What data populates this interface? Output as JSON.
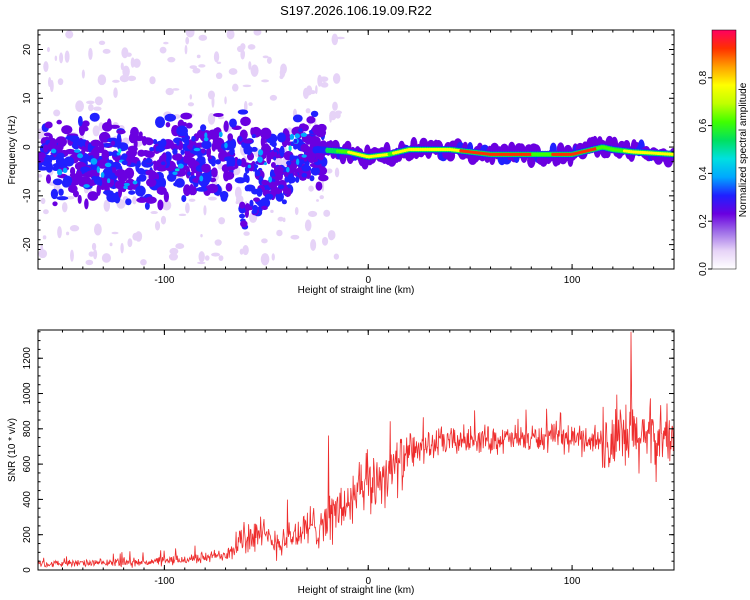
{
  "title": "S197.2026.106.19.09.R22",
  "chart_data": [
    {
      "type": "heatmap",
      "title": "S197.2026.106.19.09.R22",
      "xlabel": "Height of straight line (km)",
      "ylabel": "Frequency (Hz)",
      "xlim": [
        -162,
        150
      ],
      "ylim": [
        -25,
        24
      ],
      "x_ticks": [
        -100,
        0,
        100
      ],
      "x_tick_labels": [
        "-100",
        "0",
        "100"
      ],
      "y_ticks": [
        20,
        10,
        0,
        -10,
        -20
      ],
      "y_tick_labels": [
        "20",
        "10",
        "0",
        "-10",
        "-20"
      ],
      "ridge": {
        "x": [
          -162,
          -140,
          -120,
          -100,
          -80,
          -60,
          -45,
          -30,
          -25,
          -10,
          0,
          10,
          20,
          40,
          60,
          80,
          100,
          115,
          120,
          130,
          150
        ],
        "frequency": [
          -3,
          -3,
          -3.5,
          -3,
          -2,
          -1.5,
          -4,
          -1,
          -0.5,
          -1,
          -2,
          -1.5,
          -0.5,
          -0.5,
          -1.5,
          -1.5,
          -1.5,
          0,
          -0.5,
          -1,
          -1.5
        ]
      },
      "colorbar": {
        "label": "Normalized spectral amplitude",
        "range": [
          0.0,
          1.0
        ],
        "ticks": [
          0.0,
          0.2,
          0.4,
          0.6,
          0.8
        ],
        "tick_labels": [
          "0.0",
          "0.2",
          "0.4",
          "0.6",
          "0.8"
        ],
        "colors": [
          "#ffffff",
          "#e6d3f7",
          "#a070e8",
          "#6a00e0",
          "#2020ff",
          "#00a8ff",
          "#00e0e0",
          "#00e060",
          "#40ff00",
          "#c0ff00",
          "#ffff00",
          "#ffa000",
          "#ff3000",
          "#ff0060"
        ]
      }
    },
    {
      "type": "line",
      "xlabel": "Height of straight line (km)",
      "ylabel": "SNR (10 * v/v)",
      "xlim": [
        -162,
        150
      ],
      "ylim": [
        0,
        1360
      ],
      "x_ticks": [
        -100,
        0,
        100
      ],
      "x_tick_labels": [
        "-100",
        "0",
        "100"
      ],
      "y_ticks": [
        0,
        200,
        400,
        600,
        800,
        1000,
        1200
      ],
      "y_tick_labels": [
        "0",
        "200",
        "400",
        "600",
        "800",
        "1000",
        "1200"
      ],
      "series": [
        {
          "name": "SNR",
          "color": "#ee2c2c",
          "envelope_x": [
            -162,
            -140,
            -120,
            -100,
            -80,
            -70,
            -62,
            -55,
            -45,
            -35,
            -25,
            -15,
            -5,
            5,
            15,
            25,
            35,
            50,
            70,
            90,
            110,
            120,
            130,
            140,
            150
          ],
          "envelope_mean": [
            35,
            38,
            40,
            50,
            70,
            90,
            180,
            200,
            160,
            200,
            260,
            330,
            420,
            520,
            600,
            690,
            720,
            740,
            740,
            750,
            740,
            700,
            760,
            740,
            760
          ],
          "envelope_noise": [
            25,
            25,
            30,
            35,
            40,
            50,
            150,
            140,
            120,
            140,
            170,
            200,
            220,
            220,
            200,
            120,
            110,
            100,
            100,
            100,
            110,
            250,
            300,
            250,
            240
          ],
          "peak_x": 129,
          "peak_value": 1350
        }
      ]
    }
  ]
}
